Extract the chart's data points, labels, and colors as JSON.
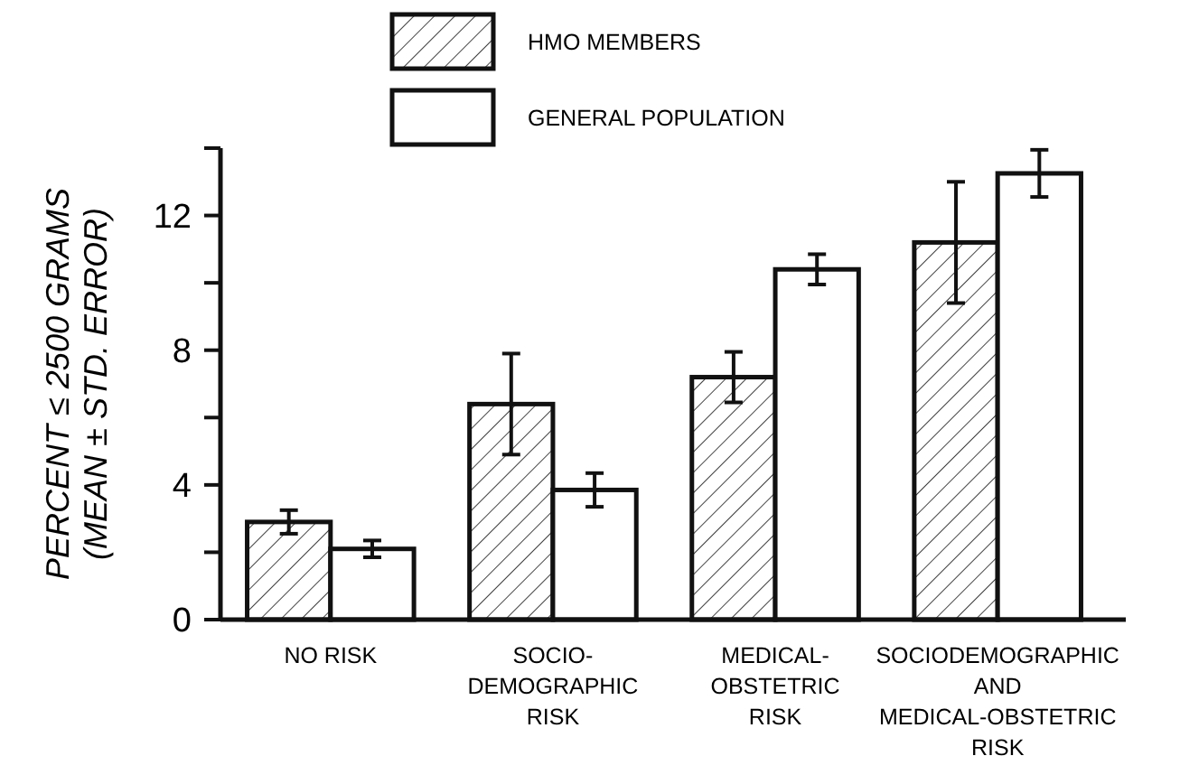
{
  "chart_data": {
    "type": "bar",
    "ylabel": "PERCENT ≤ 2500 GRAMS\n(MEAN ± STD. ERROR)",
    "categories": [
      "NO RISK",
      "SOCIO-\nDEMOGRAPHIC\nRISK",
      "MEDICAL-\nOBSTETRIC\nRISK",
      "SOCIODEMOGRAPHIC\nAND\nMEDICAL-OBSTETRIC\nRISK"
    ],
    "series": [
      {
        "name": "HMO MEMBERS",
        "color": "#111111",
        "values": [
          2.9,
          6.4,
          7.2,
          11.2
        ],
        "errors": [
          0.35,
          1.5,
          0.75,
          1.8
        ]
      },
      {
        "name": "GENERAL POPULATION",
        "color": "#ffffff",
        "values": [
          2.1,
          3.85,
          10.4,
          13.25
        ],
        "errors": [
          0.25,
          0.5,
          0.45,
          0.7
        ]
      }
    ],
    "ylim": [
      0,
      14
    ],
    "yticks": [
      0,
      {
        "value": 2,
        "label": null
      },
      4,
      {
        "value": 6,
        "label": null
      },
      8,
      {
        "value": 10,
        "label": null
      },
      12,
      {
        "value": 14,
        "label": null
      }
    ],
    "grid": false,
    "legend": "top"
  }
}
